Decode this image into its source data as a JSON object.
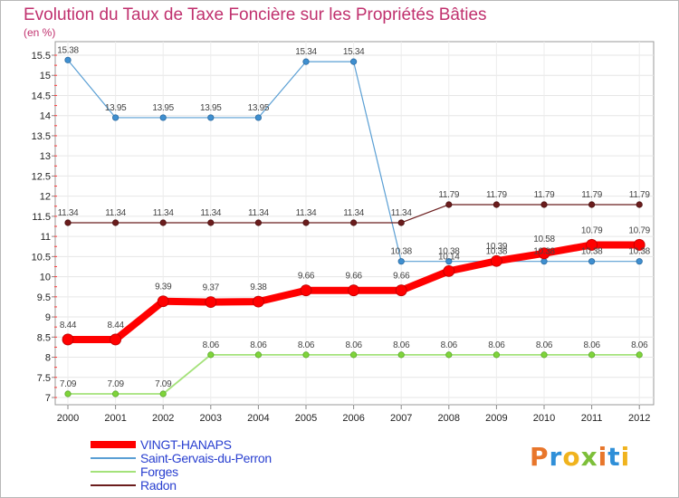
{
  "title": "Evolution du Taux de Taxe Foncière sur les Propriétés Bâties",
  "unit": "(en %)",
  "brand": "Proxiti",
  "colors": {
    "title": "#c0316e",
    "vingt": "#ff0000",
    "saint": "#5a9fd4",
    "forges": "#a4e27a",
    "radon": "#6b1d1d",
    "legend_text": "#2a40d0"
  },
  "chart_data": {
    "type": "line",
    "title": "Evolution du Taux de Taxe Foncière sur les Propriétés Bâties",
    "ylabel": "(en %)",
    "xlabel": "",
    "x": [
      "2000",
      "2001",
      "2002",
      "2003",
      "2004",
      "2005",
      "2006",
      "2007",
      "2008",
      "2009",
      "2010",
      "2011",
      "2012"
    ],
    "ylim": [
      7,
      15.5
    ],
    "yticks": [
      "7",
      "7.5",
      "8",
      "8.5",
      "9",
      "9.5",
      "10",
      "10.5",
      "11",
      "11.5",
      "12",
      "12.5",
      "13",
      "13.5",
      "14",
      "14.5",
      "15",
      "15.5"
    ],
    "legend_position": "bottom-left",
    "series": [
      {
        "name": "VINGT-HANAPS",
        "key": "vingt",
        "values": [
          8.44,
          8.44,
          9.39,
          9.37,
          9.38,
          9.66,
          9.66,
          9.66,
          10.14,
          10.39,
          10.58,
          10.79,
          10.79
        ],
        "labels": [
          "8.44",
          "8.44",
          "9.39",
          "9.37",
          "9.38",
          "9.66",
          "9.66",
          "9.66",
          "10.14",
          "10.39",
          "10.58",
          "10.79",
          "10.79"
        ]
      },
      {
        "name": "Saint-Gervais-du-Perron",
        "key": "saint",
        "values": [
          15.38,
          13.95,
          13.95,
          13.95,
          13.95,
          15.34,
          15.34,
          10.38,
          10.38,
          10.38,
          10.38,
          10.38,
          10.38
        ],
        "labels": [
          "15.38",
          "13.95",
          "13.95",
          "13.95",
          "13.95",
          "15.34",
          "15.34",
          "10.38",
          "10.38",
          "10.38",
          "10.38",
          "10.38",
          "10.38"
        ]
      },
      {
        "name": "Forges",
        "key": "forges",
        "values": [
          7.09,
          7.09,
          7.09,
          8.06,
          8.06,
          8.06,
          8.06,
          8.06,
          8.06,
          8.06,
          8.06,
          8.06,
          8.06
        ],
        "labels": [
          "7.09",
          "7.09",
          "7.09",
          "8.06",
          "8.06",
          "8.06",
          "8.06",
          "8.06",
          "8.06",
          "8.06",
          "8.06",
          "8.06",
          "8.06"
        ]
      },
      {
        "name": "Radon",
        "key": "radon",
        "values": [
          11.34,
          11.34,
          11.34,
          11.34,
          11.34,
          11.34,
          11.34,
          11.34,
          11.79,
          11.79,
          11.79,
          11.79,
          11.79
        ],
        "labels": [
          "11.34",
          "11.34",
          "11.34",
          "11.34",
          "11.34",
          "11.34",
          "11.34",
          "11.34",
          "11.79",
          "11.79",
          "11.79",
          "11.79",
          "11.79"
        ]
      }
    ]
  }
}
